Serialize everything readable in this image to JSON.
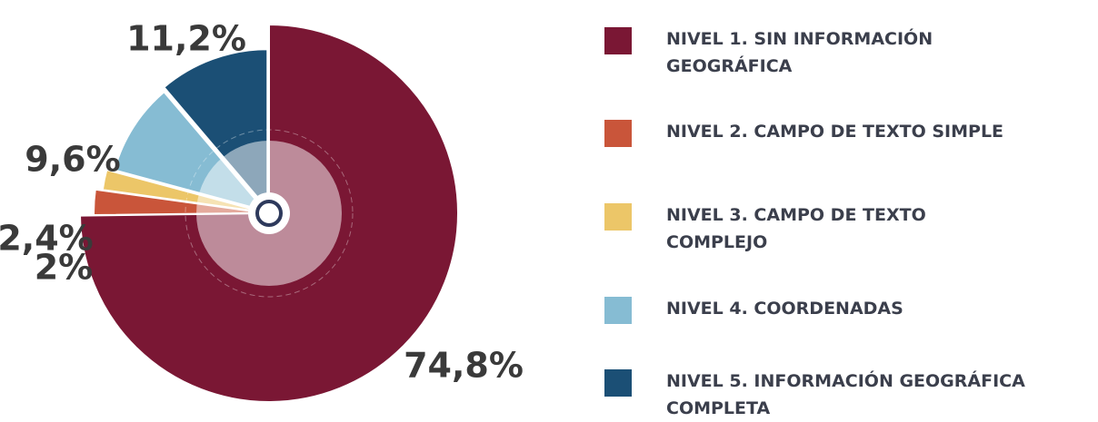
{
  "chart_data": {
    "type": "pie",
    "categories": [
      "NIVEL 1. SIN INFORMACIÓN GEOGRÁFICA",
      "NIVEL 2. CAMPO DE TEXTO SIMPLE",
      "NIVEL 3. CAMPO DE TEXTO COMPLEJO",
      "NIVEL 4. COORDENADAS",
      "NIVEL 5. INFORMACIÓN GEOGRÁFICA COMPLETA"
    ],
    "values": [
      74.8,
      2.4,
      2,
      9.6,
      11.2
    ],
    "value_labels": [
      "74,8%",
      "2,4%",
      "2%",
      "9,6%",
      "11,2%"
    ],
    "colors": [
      "#7a1734",
      "#c9553a",
      "#ecc668",
      "#86bcd3",
      "#1b4f75"
    ],
    "legend": "right"
  }
}
